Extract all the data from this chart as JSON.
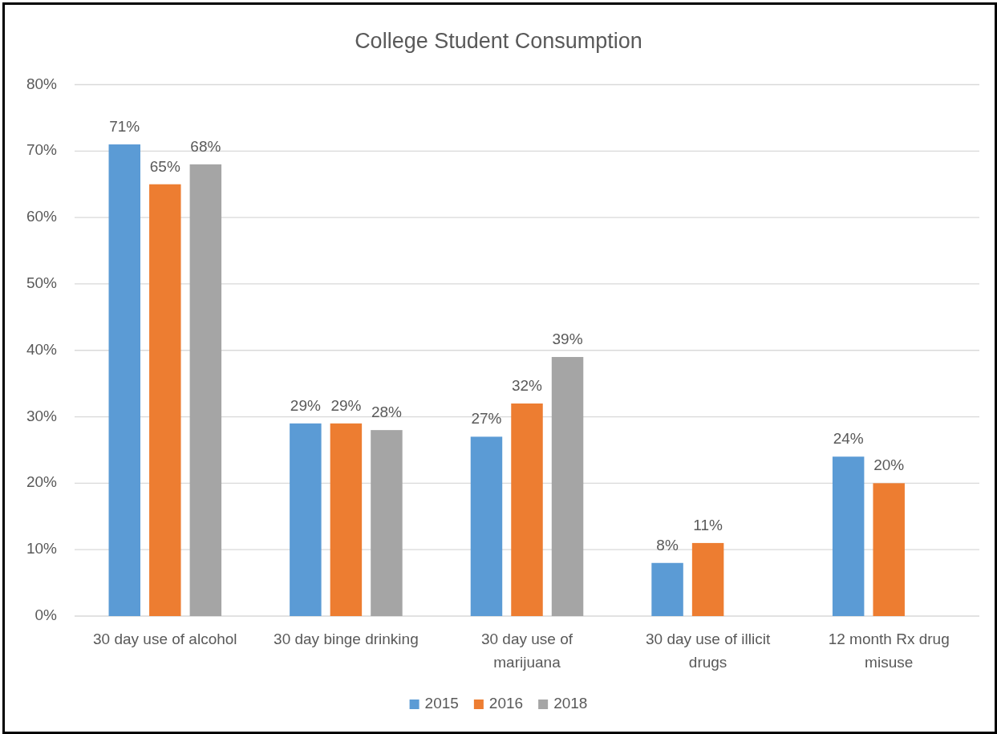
{
  "chart_data": {
    "type": "bar",
    "title": "College Student Consumption",
    "categories": [
      "30 day use of alcohol",
      "30 day binge drinking",
      "30 day use of marijuana",
      "30 day use of illicit drugs",
      "12 month Rx drug misuse"
    ],
    "series": [
      {
        "name": "2015",
        "color": "#5b9bd5",
        "values": [
          71,
          29,
          27,
          8,
          24
        ],
        "value_labels": [
          "71%",
          "29%",
          "27%",
          "8%",
          "24%"
        ]
      },
      {
        "name": "2016",
        "color": "#ed7d31",
        "values": [
          65,
          29,
          32,
          11,
          20
        ],
        "value_labels": [
          "65%",
          "29%",
          "32%",
          "11%",
          "20%"
        ]
      },
      {
        "name": "2018",
        "color": "#a5a5a5",
        "values": [
          68,
          28,
          39,
          null,
          null
        ],
        "value_labels": [
          "68%",
          "28%",
          "39%",
          null,
          null
        ]
      }
    ],
    "ylim": [
      0,
      80
    ],
    "yticks": [
      {
        "value": 0,
        "label": "0%"
      },
      {
        "value": 10,
        "label": "10%"
      },
      {
        "value": 20,
        "label": "20%"
      },
      {
        "value": 30,
        "label": "30%"
      },
      {
        "value": 40,
        "label": "40%"
      },
      {
        "value": 50,
        "label": "50%"
      },
      {
        "value": 60,
        "label": "60%"
      },
      {
        "value": 70,
        "label": "70%"
      },
      {
        "value": 80,
        "label": "80%"
      }
    ],
    "grid": "y",
    "legend": "bottom"
  }
}
